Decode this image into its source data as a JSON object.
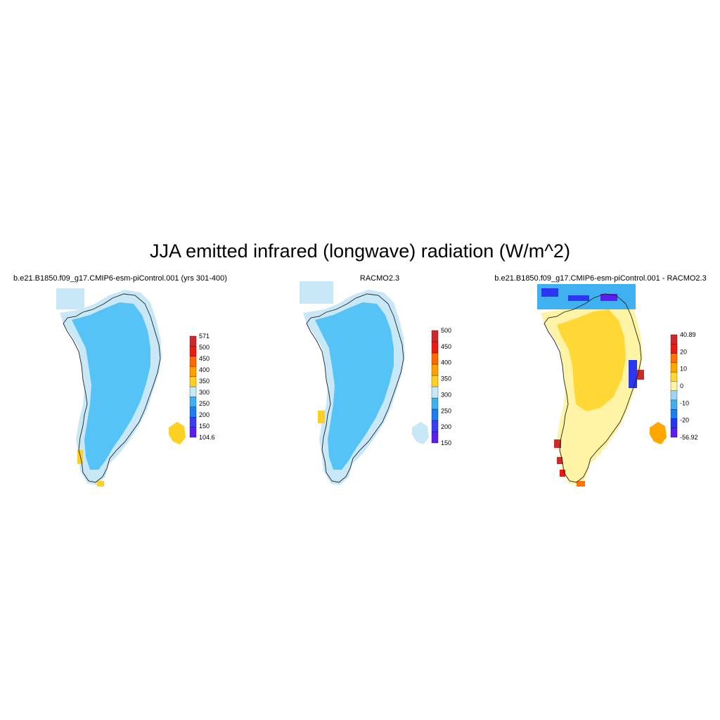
{
  "figure": {
    "title": "JJA emitted infrared (longwave) radiation (W/m^2)"
  },
  "panels": [
    {
      "id": "model",
      "title": "b.e21.B1850.f09_g17.CMIP6-esm-piControl.001 (yrs 301-400)",
      "colorbar": {
        "colors": [
          "#5b1ef0",
          "#3a3ef2",
          "#1f7cf2",
          "#3fb0f0",
          "#c8e8f7",
          "#ffd024",
          "#ffa000",
          "#ff6a00",
          "#ee1a0f",
          "#cc2a2a"
        ],
        "labels": [
          "104.6",
          "150",
          "200",
          "250",
          "300",
          "350",
          "400",
          "450",
          "500",
          "571"
        ]
      }
    },
    {
      "id": "obs",
      "title": "RACMO2.3",
      "colorbar": {
        "colors": [
          "#5b1ef0",
          "#3a3ef2",
          "#1f7cf2",
          "#3fb0f0",
          "#c8e8f7",
          "#ffd024",
          "#ffa000",
          "#ff6a00",
          "#ee1a0f",
          "#cc2a2a"
        ],
        "labels": [
          "150",
          "200",
          "250",
          "300",
          "350",
          "400",
          "450",
          "500"
        ]
      }
    },
    {
      "id": "diff",
      "title": "b.e21.B1850.f09_g17.CMIP6-esm-piControl.001 - RACMO2.3",
      "colorbar": {
        "colors": [
          "#5b1ef0",
          "#2a36f0",
          "#1f7cf2",
          "#3fb0f0",
          "#9ed4f3",
          "#fff3a6",
          "#ffd836",
          "#ffa600",
          "#ff7400",
          "#ee1a0f",
          "#cc2a2a"
        ],
        "labels": [
          "-56.92",
          "-20",
          "-10",
          "0",
          "10",
          "20",
          "40.89"
        ]
      }
    }
  ]
}
